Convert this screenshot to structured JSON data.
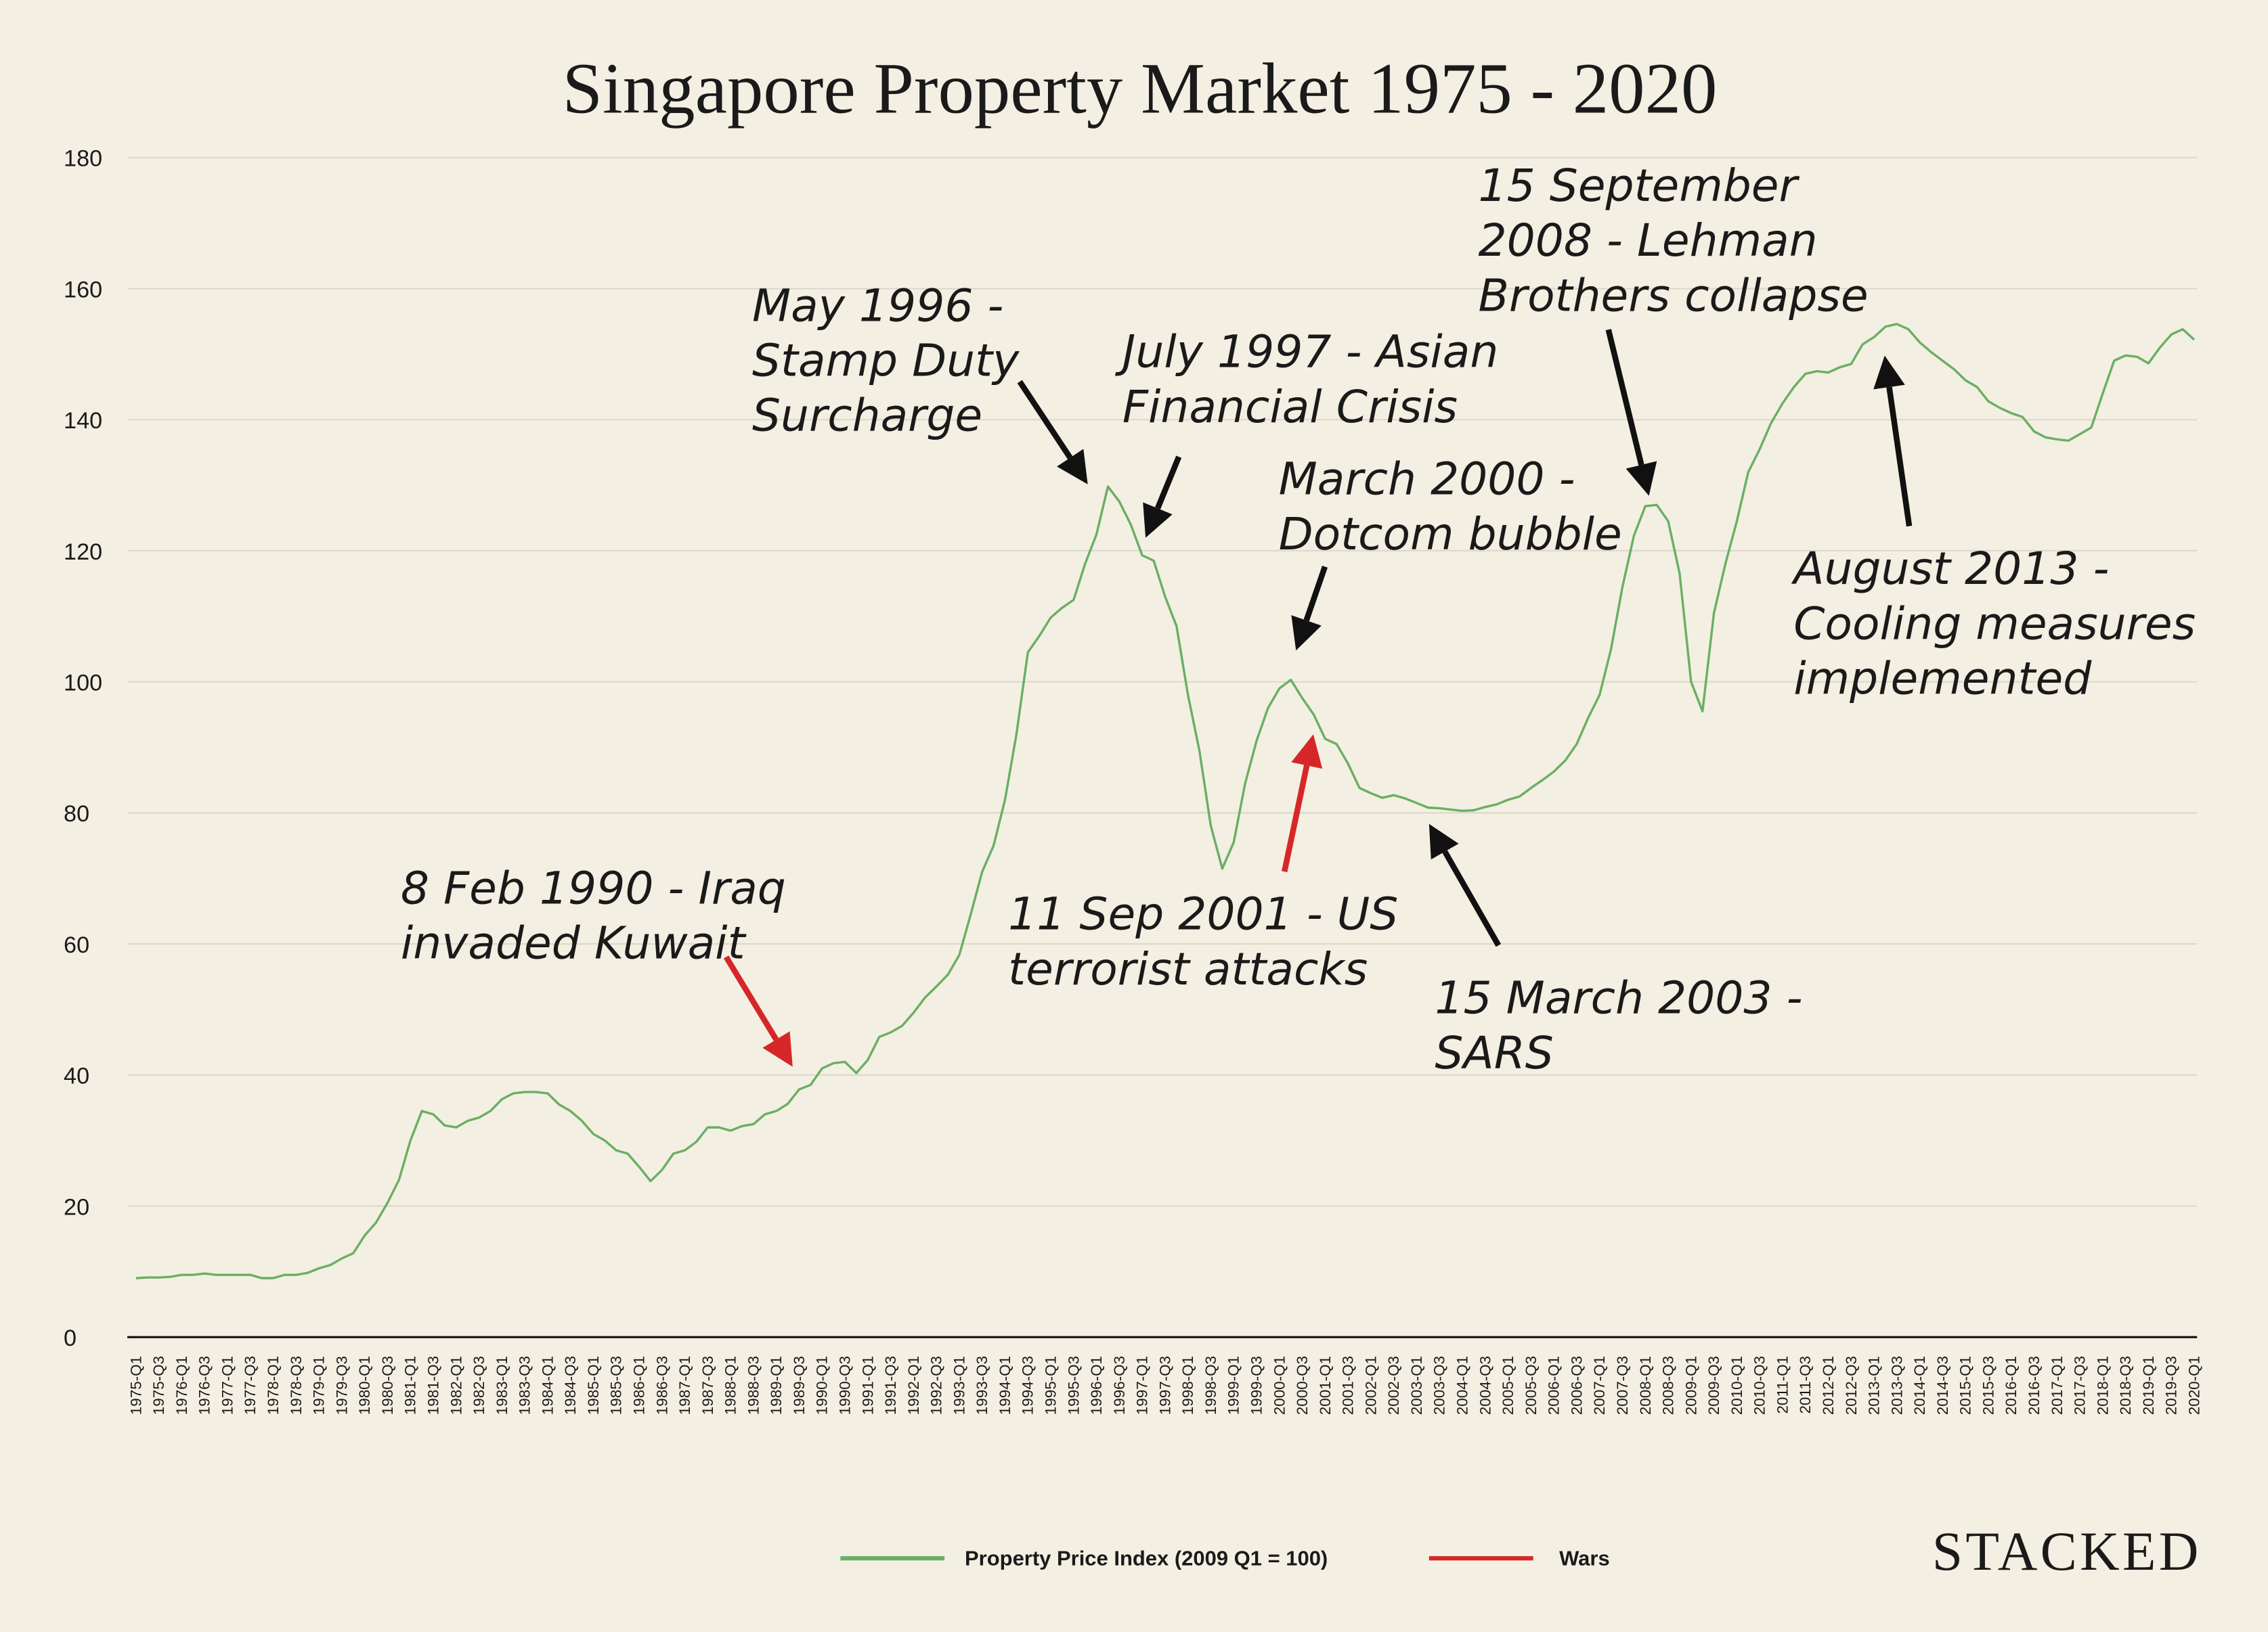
{
  "chart_data": {
    "type": "line",
    "title": "Singapore Property Market 1975 - 2020",
    "brand": "STACKED",
    "categories": [
      "1975-Q1",
      null,
      "1975-Q3",
      null,
      "1976-Q1",
      null,
      "1976-Q3",
      null,
      "1977-Q1",
      null,
      "1977-Q3",
      null,
      "1978-Q1",
      null,
      "1978-Q3",
      null,
      "1979-Q1",
      null,
      "1979-Q3",
      null,
      "1980-Q1",
      null,
      "1980-Q3",
      null,
      "1981-Q1",
      null,
      "1981-Q3",
      null,
      "1982-Q1",
      null,
      "1982-Q3",
      null,
      "1983-Q1",
      null,
      "1983-Q3",
      null,
      "1984-Q1",
      null,
      "1984-Q3",
      null,
      "1985-Q1",
      null,
      "1985-Q3",
      null,
      "1986-Q1",
      null,
      "1986-Q3",
      null,
      "1987-Q1",
      null,
      "1987-Q3",
      null,
      "1988-Q1",
      null,
      "1988-Q3",
      null,
      "1989-Q1",
      null,
      "1989-Q3",
      null,
      "1990-Q1",
      null,
      "1990-Q3",
      null,
      "1991-Q1",
      null,
      "1991-Q3",
      null,
      "1992-Q1",
      null,
      "1992-Q3",
      null,
      "1993-Q1",
      null,
      "1993-Q3",
      null,
      "1994-Q1",
      null,
      "1994-Q3",
      null,
      "1995-Q1",
      null,
      "1995-Q3",
      null,
      "1996-Q1",
      null,
      "1996-Q3",
      null,
      "1997-Q1",
      null,
      "1997-Q3",
      null,
      "1998-Q1",
      null,
      "1998-Q3",
      null,
      "1999-Q1",
      null,
      "1999-Q3",
      null,
      "2000-Q1",
      null,
      "2000-Q3",
      null,
      "2001-Q1",
      null,
      "2001-Q3",
      null,
      "2002-Q1",
      null,
      "2002-Q3",
      null,
      "2003-Q1",
      null,
      "2003-Q3",
      null,
      "2004-Q1",
      null,
      "2004-Q3",
      null,
      "2005-Q1",
      null,
      "2005-Q3",
      null,
      "2006-Q1",
      null,
      "2006-Q3",
      null,
      "2007-Q1",
      null,
      "2007-Q3",
      null,
      "2008-Q1",
      null,
      "2008-Q3",
      null,
      "2009-Q1",
      null,
      "2009-Q3",
      null,
      "2010-Q1",
      null,
      "2010-Q3",
      null,
      "2011-Q1",
      null,
      "2011-Q3",
      null,
      "2012-Q1",
      null,
      "2012-Q3",
      null,
      "2013-Q1",
      null,
      "2013-Q3",
      null,
      "2014-Q1",
      null,
      "2014-Q3",
      null,
      "2015-Q1",
      null,
      "2015-Q3",
      null,
      "2016-Q1",
      null,
      "2016-Q3",
      null,
      "2017-Q1",
      null,
      "2017-Q3",
      null,
      "2018-Q1",
      null,
      "2018-Q3",
      null,
      "2019-Q1",
      null,
      "2019-Q3",
      null,
      "2020-Q1"
    ],
    "series": [
      {
        "name": "Property Price Index (2009 Q1 = 100)",
        "color": "#6aaf64",
        "values": [
          9,
          9.1,
          9.1,
          9.2,
          9.5,
          9.5,
          9.7,
          9.5,
          9.5,
          9.5,
          9.5,
          9.0,
          9.0,
          9.5,
          9.5,
          9.8,
          10.5,
          11,
          12,
          12.8,
          15.5,
          17.5,
          20.5,
          24,
          30,
          34.5,
          34,
          32.3,
          32,
          33,
          33.5,
          34.5,
          36.3,
          37.2,
          37.4,
          37.4,
          37.2,
          35.5,
          34.5,
          33,
          31,
          30,
          28.5,
          28,
          26,
          23.8,
          25.5,
          28,
          28.5,
          29.8,
          32,
          32,
          31.5,
          32.2,
          32.5,
          34,
          34.5,
          35.6,
          37.8,
          38.5,
          41,
          41.8,
          42,
          40.3,
          42.3,
          45.8,
          46.5,
          47.5,
          49.5,
          51.8,
          53.5,
          55.3,
          58.3,
          64.5,
          71,
          75,
          82,
          92,
          104.5,
          107,
          109.8,
          111.3,
          112.5,
          118,
          122.5,
          129.8,
          127.5,
          124,
          119.3,
          118.5,
          113,
          108.5,
          98,
          89.5,
          78,
          71.5,
          75.5,
          84.5,
          91,
          96,
          99,
          100.3,
          97.5,
          95,
          91.3,
          90.5,
          87.5,
          83.8,
          83,
          82.3,
          82.7,
          82.2,
          81.5,
          80.8,
          80.7,
          80.5,
          80.3,
          80.4,
          80.9,
          81.3,
          82,
          82.5,
          83.8,
          85,
          86.3,
          88,
          90.5,
          94.5,
          98,
          105,
          114.5,
          122.3,
          126.8,
          127,
          124.5,
          116.5,
          100,
          95.5,
          110.5,
          118,
          124.5,
          132,
          135.5,
          139.5,
          142.5,
          145,
          147,
          147.4,
          147.2,
          148,
          148.5,
          151.5,
          152.6,
          154.2,
          154.6,
          153.8,
          151.8,
          150.3,
          149,
          147.7,
          146,
          145,
          142.8,
          141.8,
          141,
          140.4,
          138.2,
          137.3,
          137,
          136.8,
          137.8,
          138.8,
          144,
          149,
          149.8,
          149.6,
          148.6,
          151,
          153,
          153.8,
          152.2
        ]
      }
    ],
    "wars": {
      "name": "Wars",
      "color": "#d62728"
    },
    "ylim": [
      0,
      180
    ],
    "yticks": [
      0,
      20,
      40,
      60,
      80,
      100,
      120,
      140,
      160,
      180
    ],
    "grid": true,
    "legend": "bottom",
    "annotations": [
      {
        "lines": [
          "8 Feb 1990 - Iraq",
          "invaded Kuwait"
        ],
        "color": "#d62728"
      },
      {
        "lines": [
          "May 1996 -",
          "Stamp Duty",
          "Surcharge"
        ],
        "color": "#111111"
      },
      {
        "lines": [
          "July 1997 - Asian",
          "Financial Crisis"
        ],
        "color": "#111111"
      },
      {
        "lines": [
          "March 2000 -",
          "Dotcom bubble"
        ],
        "color": "#111111"
      },
      {
        "lines": [
          "11 Sep 2001 - US",
          "terrorist attacks"
        ],
        "color": "#d62728"
      },
      {
        "lines": [
          "15 March 2003 -",
          "SARS"
        ],
        "color": "#111111"
      },
      {
        "lines": [
          "15 September",
          "2008 - Lehman",
          "Brothers collapse"
        ],
        "color": "#111111"
      },
      {
        "lines": [
          "August 2013 -",
          "Cooling measures",
          "implemented"
        ],
        "color": "#111111"
      }
    ]
  }
}
